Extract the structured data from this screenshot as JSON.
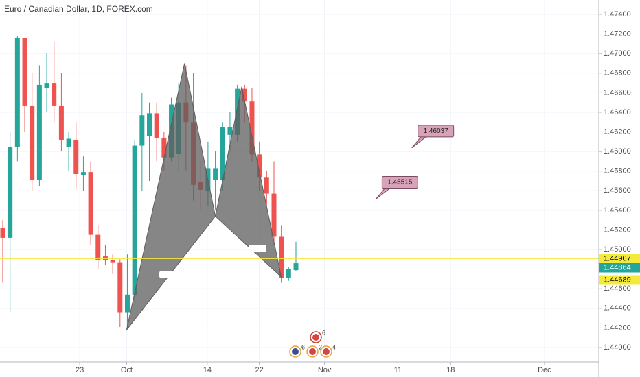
{
  "chart_data": {
    "type": "candlestick",
    "title": "Euro / Canadian Dollar, 1D, FOREX.com",
    "up_color": "#26a69a",
    "down_color": "#ef5350",
    "series": {
      "open": [
        1.4522,
        1.4512,
        1.4605,
        1.4716,
        1.4647,
        1.4571,
        1.4665,
        1.467,
        1.4647,
        1.4605,
        1.4612,
        1.4576,
        1.4579,
        1.4515,
        1.4493,
        1.4489,
        1.4487,
        1.4436,
        1.4454,
        1.4606,
        1.4616,
        1.4639,
        1.4614,
        1.4594,
        1.4598,
        1.465,
        1.463,
        1.4569,
        1.456,
        1.4571,
        1.4571,
        1.4617,
        1.4617,
        1.4664,
        1.4651,
        1.4597,
        1.4574,
        1.4557,
        1.4513,
        1.4471,
        1.4479
      ],
      "high": [
        1.453,
        1.462,
        1.4718,
        1.4716,
        1.468,
        1.4688,
        1.47,
        1.4712,
        1.468,
        1.462,
        1.463,
        1.4595,
        1.459,
        1.4525,
        1.4505,
        1.4495,
        1.449,
        1.4495,
        1.4612,
        1.466,
        1.465,
        1.465,
        1.462,
        1.4655,
        1.467,
        1.4688,
        1.468,
        1.459,
        1.461,
        1.46,
        1.463,
        1.464,
        1.4668,
        1.4668,
        1.4665,
        1.461,
        1.458,
        1.459,
        1.4525,
        1.4482,
        1.4508
      ],
      "low": [
        1.4466,
        1.4436,
        1.459,
        1.462,
        1.456,
        1.4565,
        1.464,
        1.463,
        1.46,
        1.458,
        1.4562,
        1.456,
        1.4505,
        1.448,
        1.4484,
        1.4475,
        1.4421,
        1.4421,
        1.4446,
        1.456,
        1.457,
        1.459,
        1.458,
        1.459,
        1.458,
        1.458,
        1.455,
        1.454,
        1.4545,
        1.454,
        1.456,
        1.46,
        1.461,
        1.463,
        1.459,
        1.456,
        1.4545,
        1.4505,
        1.4466,
        1.4468,
        1.4478
      ],
      "close": [
        1.4512,
        1.4605,
        1.4716,
        1.4647,
        1.4571,
        1.4668,
        1.467,
        1.4647,
        1.4612,
        1.4613,
        1.4577,
        1.4579,
        1.4515,
        1.4489,
        1.4489,
        1.4487,
        1.4436,
        1.4454,
        1.4606,
        1.4637,
        1.4639,
        1.4614,
        1.4594,
        1.4648,
        1.465,
        1.463,
        1.4566,
        1.4561,
        1.4583,
        1.4583,
        1.4625,
        1.4625,
        1.4664,
        1.4651,
        1.4597,
        1.4574,
        1.4557,
        1.4513,
        1.4471,
        1.448,
        1.4486
      ]
    },
    "ylim": [
      1.43853,
      1.47547
    ],
    "yticks": [
      {
        "value": 1.44,
        "label": "1.44000"
      },
      {
        "value": 1.442,
        "label": "1.44200"
      },
      {
        "value": 1.444,
        "label": "1.44400"
      },
      {
        "value": 1.446,
        "label": "1.44600"
      },
      {
        "value": 1.448,
        "label": "1.44800"
      },
      {
        "value": 1.45,
        "label": "1.45000"
      },
      {
        "value": 1.452,
        "label": "1.45200"
      },
      {
        "value": 1.454,
        "label": "1.45400"
      },
      {
        "value": 1.456,
        "label": "1.45600"
      },
      {
        "value": 1.458,
        "label": "1.45800"
      },
      {
        "value": 1.46,
        "label": "1.46000"
      },
      {
        "value": 1.462,
        "label": "1.46200"
      },
      {
        "value": 1.464,
        "label": "1.46400"
      },
      {
        "value": 1.466,
        "label": "1.46600"
      },
      {
        "value": 1.468,
        "label": "1.46800"
      },
      {
        "value": 1.47,
        "label": "1.47000"
      },
      {
        "value": 1.472,
        "label": "1.47200"
      },
      {
        "value": 1.474,
        "label": "1.47400"
      }
    ],
    "xlim": [
      -0.375,
      81.31
    ],
    "xticks": [
      {
        "value": 10.5,
        "label": "23"
      },
      {
        "value": 16.9,
        "label": "Oct"
      },
      {
        "value": 27.9,
        "label": "14"
      },
      {
        "value": 35.0,
        "label": "22"
      },
      {
        "value": 43.9,
        "label": "Nov"
      },
      {
        "value": 53.9,
        "label": "11"
      },
      {
        "value": 61.1,
        "label": "18"
      },
      {
        "value": 73.9,
        "label": "Dec"
      }
    ],
    "price_lines": [
      {
        "value": 1.44907,
        "color": "#f5ea3a"
      },
      {
        "value": 1.44689,
        "color": "#f5ea3a"
      }
    ],
    "last_price": 1.44864,
    "pattern": {
      "color": "#5d5d5d",
      "x": [
        16.9,
        24.8,
        29.0,
        32.6,
        38.0
      ],
      "y": [
        1.4418,
        1.469,
        1.4534,
        1.4666,
        1.4472
      ]
    },
    "callouts": [
      {
        "x": 55.8,
        "y": 1.46037
      },
      {
        "x": 50.9,
        "y": 1.45515
      }
    ],
    "event_badges": [
      "6",
      "6",
      "2",
      "4"
    ]
  }
}
